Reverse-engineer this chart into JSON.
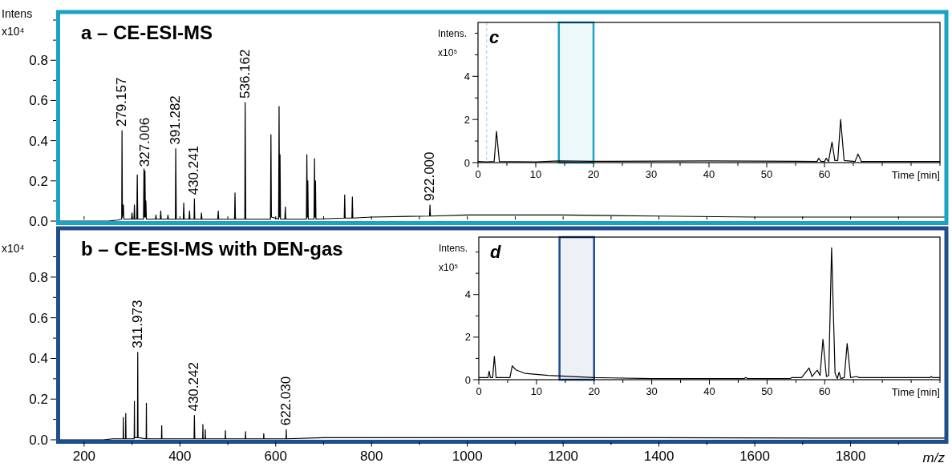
{
  "chart_data": [
    {
      "type": "line",
      "title": "a – CE-ESI-MS",
      "ylabel": "Intens x10⁴",
      "xlim": [
        150,
        2000
      ],
      "ylim": [
        0,
        1.04
      ],
      "tick_labels": "y",
      "xticks": [
        {
          "value": 200,
          "label": null
        },
        {
          "value": 300,
          "label": null
        },
        {
          "value": 400,
          "label": null
        },
        {
          "value": 500,
          "label": null
        },
        {
          "value": 600,
          "label": null
        },
        {
          "value": 700,
          "label": null
        },
        {
          "value": 800,
          "label": null
        },
        {
          "value": 900,
          "label": null
        },
        {
          "value": 1000,
          "label": null
        },
        {
          "value": 1100,
          "label": null
        },
        {
          "value": 1200,
          "label": null
        },
        {
          "value": 1300,
          "label": null
        },
        {
          "value": 1400,
          "label": null
        },
        {
          "value": 1500,
          "label": null
        },
        {
          "value": 1600,
          "label": null
        },
        {
          "value": 1700,
          "label": null
        },
        {
          "value": 1800,
          "label": null
        },
        {
          "value": 1900,
          "label": null
        }
      ],
      "yticks": [
        {
          "value": 0,
          "label": "0.0"
        },
        {
          "value": 0.1,
          "label": null
        },
        {
          "value": 0.2,
          "label": "0.2"
        },
        {
          "value": 0.3,
          "label": null
        },
        {
          "value": 0.4,
          "label": "0.4"
        },
        {
          "value": 0.5,
          "label": null
        },
        {
          "value": 0.6,
          "label": "0.6"
        },
        {
          "value": 0.7,
          "label": null
        },
        {
          "value": 0.8,
          "label": "0.8"
        },
        {
          "value": 0.9,
          "label": null
        },
        {
          "value": 1.0,
          "label": null
        }
      ],
      "series": [
        {
          "color": "#000000",
          "x": [
            150,
            250,
            270,
            278.5,
            279.157,
            280,
            282,
            283,
            299,
            300,
            301,
            304,
            305,
            306,
            310,
            311,
            312,
            324,
            325,
            326,
            327.006,
            328,
            329,
            330,
            349,
            350,
            351,
            359,
            360,
            361,
            374,
            375,
            376,
            390.5,
            391.282,
            392.5,
            407,
            408,
            409,
            419,
            420,
            421,
            429.5,
            430.241,
            431,
            444,
            445,
            446,
            479,
            480,
            481,
            514,
            515,
            516,
            535.5,
            536.162,
            537.5,
            589,
            590,
            591,
            606,
            607,
            608,
            609,
            610,
            619,
            620,
            621,
            664,
            665,
            666,
            667,
            668,
            680,
            681,
            682,
            683,
            684,
            743,
            744,
            745,
            759,
            760,
            761,
            800,
            921,
            922.0,
            923,
            1000,
            1200,
            1400,
            1600,
            1800,
            2000
          ],
          "values": [
            0,
            0,
            0.005,
            0.01,
            0.45,
            0.02,
            0.08,
            0.01,
            0.01,
            0.04,
            0.01,
            0.01,
            0.08,
            0.01,
            0.01,
            0.23,
            0.01,
            0.01,
            0.26,
            0.02,
            0.25,
            0.02,
            0.1,
            0.01,
            0.01,
            0.03,
            0.01,
            0.01,
            0.05,
            0.01,
            0.01,
            0.03,
            0.01,
            0.01,
            0.36,
            0.01,
            0.01,
            0.09,
            0.01,
            0.01,
            0.05,
            0.01,
            0.01,
            0.11,
            0.01,
            0.01,
            0.04,
            0.01,
            0.01,
            0.05,
            0.01,
            0.01,
            0.14,
            0.01,
            0.01,
            0.59,
            0.01,
            0.01,
            0.43,
            0.02,
            0.01,
            0.57,
            0.02,
            0.33,
            0.01,
            0.01,
            0.07,
            0.01,
            0.01,
            0.33,
            0.02,
            0.2,
            0.01,
            0.01,
            0.31,
            0.02,
            0.2,
            0.01,
            0.015,
            0.13,
            0.015,
            0.015,
            0.12,
            0.015,
            0.02,
            0.025,
            0.08,
            0.025,
            0.03,
            0.03,
            0.025,
            0.02,
            0.02,
            0.02
          ]
        }
      ],
      "annotations": [
        {
          "text": "279.157",
          "x": 279.157,
          "y": 0.45
        },
        {
          "text": "327.006",
          "x": 327.006,
          "y": 0.25
        },
        {
          "text": "391.282",
          "x": 391.282,
          "y": 0.36
        },
        {
          "text": "430.241",
          "x": 430.241,
          "y": 0.11
        },
        {
          "text": "536.162",
          "x": 536.162,
          "y": 0.59
        },
        {
          "text": "922.000",
          "x": 922.0,
          "y": 0.08
        }
      ]
    },
    {
      "type": "line",
      "title": "c",
      "xlabel": "Time [min]",
      "ylabel": "Intens. x10⁵",
      "xlim": [
        0,
        80
      ],
      "ylim": [
        0,
        6.5
      ],
      "xticks": [
        0,
        {
          "value": 5,
          "label": null
        },
        10,
        {
          "value": 15,
          "label": null
        },
        20,
        {
          "value": 25,
          "label": null
        },
        30,
        {
          "value": 35,
          "label": null
        },
        40,
        {
          "value": 45,
          "label": null
        },
        50,
        {
          "value": 55,
          "label": null
        },
        60,
        {
          "value": 65,
          "label": null
        },
        {
          "value": 70,
          "label": null
        },
        {
          "value": 75,
          "label": null
        },
        {
          "value": 80,
          "label": null
        }
      ],
      "yticks": [
        0,
        {
          "value": 1,
          "label": null
        },
        2,
        {
          "value": 3,
          "label": null
        },
        4,
        {
          "value": 5,
          "label": null
        },
        {
          "value": 6,
          "label": null
        }
      ],
      "series": [
        {
          "color": "#000000",
          "x": [
            0,
            1.5,
            2.8,
            3.2,
            3.7,
            10,
            14,
            20,
            40,
            55,
            58.7,
            59,
            59.4,
            60,
            60.3,
            60.7,
            61.3,
            61.8,
            62.3,
            62.8,
            63.4,
            65.3,
            65.8,
            66.4,
            80
          ],
          "values": [
            0.05,
            0.03,
            0.05,
            1.45,
            0.05,
            0.03,
            0.08,
            0.06,
            0.08,
            0.06,
            0.05,
            0.2,
            0.05,
            0.05,
            0.2,
            0.05,
            0.95,
            0.1,
            0.1,
            2.0,
            0.1,
            0.05,
            0.4,
            0.05,
            0.05
          ]
        }
      ],
      "ref_lines": [
        {
          "axis": "x",
          "value": 1.5,
          "color": "#9cc8ef",
          "line_style": "dashed"
        }
      ],
      "bands": [
        {
          "axis": "x",
          "from": 14,
          "to": 20,
          "color": "#1aa3c4"
        }
      ]
    },
    {
      "type": "line",
      "title": "b – CE-ESI-MS with DEN-gas",
      "xlabel": "m/z",
      "ylabel": "x10⁴",
      "xlim": [
        150,
        2000
      ],
      "ylim": [
        0,
        1.04
      ],
      "xticks": [
        200,
        {
          "value": 300,
          "label": null
        },
        400,
        {
          "value": 500,
          "label": null
        },
        600,
        {
          "value": 700,
          "label": null
        },
        800,
        {
          "value": 900,
          "label": null
        },
        1000,
        {
          "value": 1100,
          "label": null
        },
        1200,
        {
          "value": 1300,
          "label": null
        },
        1400,
        {
          "value": 1500,
          "label": null
        },
        1600,
        {
          "value": 1700,
          "label": null
        },
        1800,
        {
          "value": 1900,
          "label": null
        }
      ],
      "yticks": [
        {
          "value": 0,
          "label": "0.0"
        },
        {
          "value": 0.1,
          "label": null
        },
        {
          "value": 0.2,
          "label": "0.2"
        },
        {
          "value": 0.3,
          "label": null
        },
        {
          "value": 0.4,
          "label": "0.4"
        },
        {
          "value": 0.5,
          "label": null
        },
        {
          "value": 0.6,
          "label": "0.6"
        },
        {
          "value": 0.7,
          "label": null
        },
        {
          "value": 0.8,
          "label": "0.8"
        },
        {
          "value": 0.9,
          "label": null
        }
      ],
      "series": [
        {
          "color": "#000000",
          "x": [
            150,
            240,
            260,
            281.5,
            282,
            282.5,
            286.5,
            287,
            287.5,
            304.5,
            305,
            305.5,
            311.3,
            311.973,
            312.6,
            329.5,
            330,
            330.5,
            361.5,
            362,
            362.5,
            429.5,
            430.242,
            431,
            447.5,
            448,
            448.5,
            452.5,
            453,
            453.5,
            494.5,
            495,
            495.5,
            536.5,
            537,
            537.5,
            574.5,
            575,
            575.5,
            621.5,
            622.03,
            622.5,
            700,
            1000,
            1400,
            1800,
            2000
          ],
          "values": [
            0,
            0,
            0.005,
            0.005,
            0.11,
            0.005,
            0.005,
            0.13,
            0.005,
            0.005,
            0.19,
            0.01,
            0.01,
            0.43,
            0.01,
            0.005,
            0.18,
            0.005,
            0.005,
            0.07,
            0.005,
            0.005,
            0.12,
            0.005,
            0.005,
            0.075,
            0.005,
            0.005,
            0.05,
            0.005,
            0.005,
            0.045,
            0.005,
            0.005,
            0.04,
            0.005,
            0.005,
            0.03,
            0.005,
            0.005,
            0.05,
            0.005,
            0.01,
            0.01,
            0.01,
            0.008,
            0.008
          ]
        }
      ],
      "annotations": [
        {
          "text": "311.973",
          "x": 311.973,
          "y": 0.43
        },
        {
          "text": "430.242",
          "x": 430.242,
          "y": 0.12
        },
        {
          "text": "622.030",
          "x": 622.03,
          "y": 0.05
        }
      ]
    },
    {
      "type": "line",
      "title": "d",
      "xlabel": "Time [min]",
      "ylabel": "Intens. x10⁵",
      "xlim": [
        0,
        80
      ],
      "ylim": [
        0,
        6.7
      ],
      "xticks": [
        0,
        {
          "value": 5,
          "label": null
        },
        10,
        {
          "value": 15,
          "label": null
        },
        20,
        {
          "value": 25,
          "label": null
        },
        30,
        {
          "value": 35,
          "label": null
        },
        40,
        {
          "value": 45,
          "label": null
        },
        50,
        {
          "value": 55,
          "label": null
        },
        60,
        {
          "value": 65,
          "label": null
        },
        {
          "value": 70,
          "label": null
        },
        {
          "value": 75,
          "label": null
        },
        {
          "value": 80,
          "label": null
        }
      ],
      "yticks": [
        0,
        {
          "value": 1,
          "label": null
        },
        2,
        {
          "value": 3,
          "label": null
        },
        4,
        {
          "value": 5,
          "label": null
        },
        {
          "value": 6,
          "label": null
        }
      ],
      "series": [
        {
          "color": "#000000",
          "x": [
            0,
            1.6,
            1.8,
            2.0,
            2.4,
            2.7,
            3.0,
            5.4,
            5.8,
            6.5,
            8,
            12,
            20,
            30,
            46,
            46.3,
            46.7,
            54,
            54.3,
            56,
            57.3,
            57.8,
            58.7,
            59.2,
            59.7,
            60.3,
            60.7,
            61.2,
            61.8,
            62.2,
            62.5,
            62.8,
            63.4,
            63.9,
            64.5,
            65.5,
            66,
            78.3,
            78.5,
            78.7,
            80
          ],
          "values": [
            0.1,
            0.1,
            0.4,
            0.1,
            0.1,
            1.1,
            0.1,
            0.1,
            0.65,
            0.45,
            0.3,
            0.2,
            0.1,
            0.05,
            0.05,
            0.1,
            0.05,
            0.05,
            0.1,
            0.1,
            0.55,
            0.15,
            0.45,
            0.2,
            1.9,
            0.15,
            0.2,
            6.2,
            0.3,
            0.05,
            0.35,
            0.05,
            0.1,
            1.7,
            0.1,
            0.15,
            0.1,
            0.1,
            0.15,
            0.1,
            0.1
          ]
        }
      ],
      "bands": [
        {
          "axis": "x",
          "from": 14,
          "to": 20,
          "color": "#1f4e8c"
        }
      ]
    }
  ]
}
